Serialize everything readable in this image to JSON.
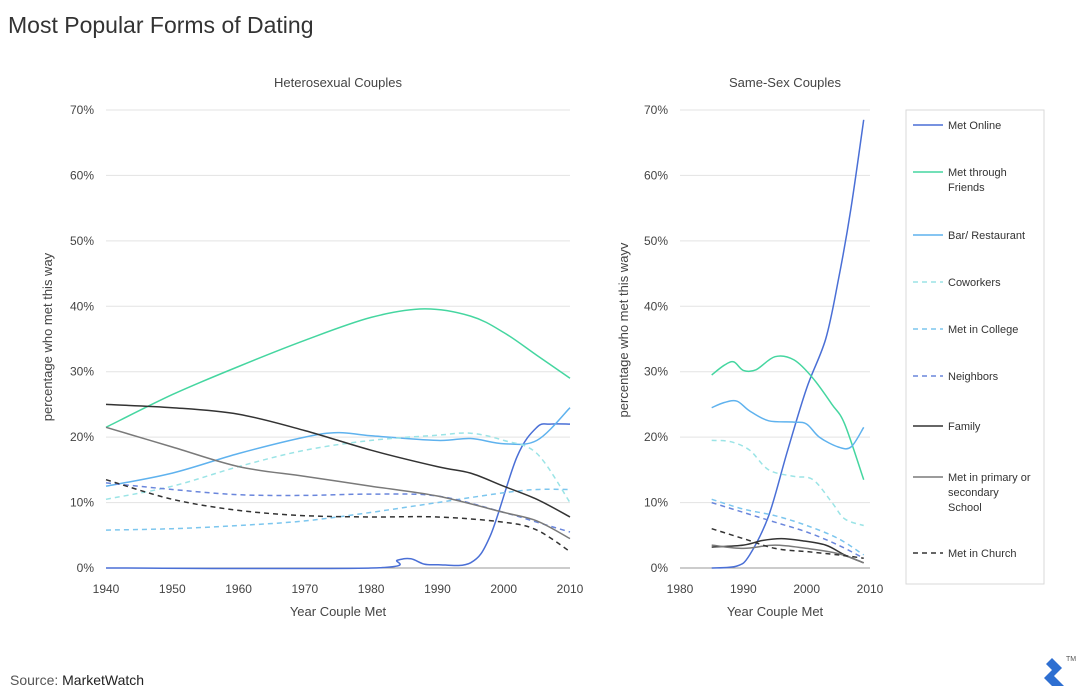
{
  "title": "Most Popular Forms of Dating",
  "source": {
    "prefix": "Source:",
    "name": "MarketWatch"
  },
  "colors": {
    "met_online": "#4a6fd6",
    "friends": "#45d6a0",
    "bar": "#5fb2ee",
    "coworkers": "#9be4e6",
    "college": "#7cc6ee",
    "neighbors": "#6a86dc",
    "family": "#333333",
    "school": "#7a7a7a",
    "church": "#333333",
    "logo": "#2e6fd1"
  },
  "legend": [
    {
      "key": "met_online",
      "label_lines": [
        "Met Online"
      ],
      "dash": "solid"
    },
    {
      "key": "friends",
      "label_lines": [
        "Met through",
        "Friends"
      ],
      "dash": "solid"
    },
    {
      "key": "bar",
      "label_lines": [
        "Bar/ Restaurant"
      ],
      "dash": "solid"
    },
    {
      "key": "coworkers",
      "label_lines": [
        "Coworkers"
      ],
      "dash": "dashed"
    },
    {
      "key": "college",
      "label_lines": [
        "Met in College"
      ],
      "dash": "dashed"
    },
    {
      "key": "neighbors",
      "label_lines": [
        "Neighbors"
      ],
      "dash": "dashed"
    },
    {
      "key": "family",
      "label_lines": [
        "Family"
      ],
      "dash": "solid"
    },
    {
      "key": "school",
      "label_lines": [
        "Met in primary or",
        "secondary",
        "School"
      ],
      "dash": "solid"
    },
    {
      "key": "church",
      "label_lines": [
        "Met in Church"
      ],
      "dash": "dashed"
    }
  ],
  "chart_data": [
    {
      "type": "line",
      "title": "Heterosexual Couples",
      "xlabel": "Year Couple Met",
      "ylabel": "percentage who met this way",
      "xlim": [
        1940,
        2010
      ],
      "ylim": [
        0,
        70
      ],
      "xticks": [
        1940,
        1950,
        1960,
        1970,
        1980,
        1990,
        2000,
        2010
      ],
      "xtick_labels": [
        "1940",
        "1950",
        "1960",
        "1970",
        "1980",
        "1990",
        "2000",
        "2010"
      ],
      "yticks": [
        0,
        10,
        20,
        30,
        40,
        50,
        60,
        70
      ],
      "ytick_labels": [
        "0%",
        "10%",
        "20%",
        "30%",
        "40%",
        "50%",
        "60%",
        "70%"
      ],
      "grid": "horizontal",
      "series": [
        {
          "key": "met_online",
          "name": "Met Online",
          "x": [
            1940,
            1980,
            1984,
            1986,
            1988,
            1990,
            1995,
            1998,
            2002,
            2005,
            2007,
            2010
          ],
          "y": [
            0,
            0,
            1.2,
            1.4,
            0.6,
            0.5,
            0.8,
            5,
            17,
            21.5,
            22,
            22
          ]
        },
        {
          "key": "friends",
          "name": "Met through Friends",
          "x": [
            1940,
            1950,
            1960,
            1970,
            1980,
            1988,
            1995,
            2000,
            2005,
            2010
          ],
          "y": [
            21.5,
            26.5,
            30.8,
            34.8,
            38.3,
            39.6,
            38.5,
            36,
            32.5,
            29
          ]
        },
        {
          "key": "bar",
          "name": "Bar/ Restaurant",
          "x": [
            1940,
            1950,
            1960,
            1970,
            1975,
            1980,
            1990,
            1995,
            2000,
            2005,
            2010
          ],
          "y": [
            12.5,
            14.5,
            17.5,
            20,
            20.7,
            20.2,
            19.5,
            19.8,
            19,
            19.5,
            24.5
          ]
        },
        {
          "key": "coworkers",
          "name": "Coworkers",
          "x": [
            1940,
            1950,
            1960,
            1970,
            1980,
            1990,
            1995,
            2000,
            2005,
            2010
          ],
          "y": [
            10.5,
            12.5,
            15.5,
            18,
            19.5,
            20.3,
            20.6,
            19.5,
            17.5,
            10
          ]
        },
        {
          "key": "college",
          "name": "Met in College",
          "x": [
            1940,
            1950,
            1960,
            1970,
            1980,
            1990,
            2000,
            2005,
            2010
          ],
          "y": [
            5.8,
            6,
            6.5,
            7.2,
            8.5,
            10,
            11.5,
            12,
            12
          ]
        },
        {
          "key": "neighbors",
          "name": "Neighbors",
          "x": [
            1940,
            1950,
            1960,
            1970,
            1980,
            1990,
            2000,
            2005,
            2010
          ],
          "y": [
            13,
            12,
            11.2,
            11.1,
            11.3,
            11,
            8.5,
            7,
            5.5
          ]
        },
        {
          "key": "family",
          "name": "Family",
          "x": [
            1940,
            1950,
            1960,
            1970,
            1980,
            1990,
            1995,
            2000,
            2005,
            2010
          ],
          "y": [
            25,
            24.5,
            23.5,
            21,
            18,
            15.5,
            14.5,
            12.5,
            10.5,
            7.8
          ]
        },
        {
          "key": "school",
          "name": "Met in primary or secondary School",
          "x": [
            1940,
            1950,
            1960,
            1970,
            1980,
            1990,
            2000,
            2005,
            2010
          ],
          "y": [
            21.5,
            18.5,
            15.5,
            14,
            12.5,
            11,
            8.5,
            7.2,
            4.5
          ]
        },
        {
          "key": "church",
          "name": "Met in Church",
          "x": [
            1940,
            1950,
            1960,
            1970,
            1980,
            1990,
            2000,
            2005,
            2010
          ],
          "y": [
            13.5,
            10.5,
            8.8,
            8,
            7.8,
            7.8,
            7,
            5.8,
            2.5
          ]
        }
      ]
    },
    {
      "type": "line",
      "title": "Same-Sex Couples",
      "xlabel": "Year Couple Met",
      "ylabel": "percentage who met this wayv",
      "xlim": [
        1980,
        2010
      ],
      "ylim": [
        0,
        70
      ],
      "xticks": [
        1980,
        1990,
        2000,
        2010
      ],
      "xtick_labels": [
        "1980",
        "1990",
        "2000",
        "2010"
      ],
      "yticks": [
        0,
        10,
        20,
        30,
        40,
        50,
        60,
        70
      ],
      "ytick_labels": [
        "0%",
        "10%",
        "20%",
        "30%",
        "40%",
        "50%",
        "60%",
        "70%"
      ],
      "grid": "horizontal",
      "series": [
        {
          "key": "met_online",
          "name": "Met Online",
          "x": [
            1985,
            1989,
            1991,
            1994,
            1997,
            2000,
            2003,
            2005,
            2007,
            2009
          ],
          "y": [
            0,
            0.3,
            2,
            8,
            18,
            27.5,
            35,
            44,
            55,
            68.5
          ]
        },
        {
          "key": "friends",
          "name": "Met through Friends",
          "x": [
            1985,
            1987,
            1988.5,
            1990,
            1992,
            1995,
            1998,
            2001,
            2004,
            2006,
            2009
          ],
          "y": [
            29.5,
            31,
            31.5,
            30.2,
            30.3,
            32.3,
            31.8,
            29,
            25,
            22,
            13.5
          ]
        },
        {
          "key": "bar",
          "name": "Bar/ Restaurant",
          "x": [
            1985,
            1987,
            1989,
            1991,
            1994,
            1998,
            2000,
            2002,
            2005,
            2007,
            2009
          ],
          "y": [
            24.5,
            25.3,
            25.5,
            24,
            22.5,
            22.3,
            22,
            20,
            18.5,
            18.5,
            21.5
          ]
        },
        {
          "key": "coworkers",
          "name": "Coworkers",
          "x": [
            1985,
            1988,
            1991,
            1994,
            1998,
            2001,
            2004,
            2006,
            2009
          ],
          "y": [
            19.5,
            19.3,
            18,
            15,
            14,
            13.5,
            10,
            7.5,
            6.5
          ]
        },
        {
          "key": "college",
          "name": "Met in College",
          "x": [
            1985,
            1990,
            1995,
            2000,
            2005,
            2009
          ],
          "y": [
            10.5,
            9,
            8,
            6.5,
            4.5,
            2
          ]
        },
        {
          "key": "neighbors",
          "name": "Neighbors",
          "x": [
            1985,
            1990,
            1995,
            2000,
            2005,
            2009
          ],
          "y": [
            10,
            8.5,
            7,
            5.5,
            3.5,
            1.5
          ]
        },
        {
          "key": "family",
          "name": "Family",
          "x": [
            1985,
            1990,
            1993,
            1996,
            1999,
            2003,
            2006,
            2009
          ],
          "y": [
            3.2,
            3.5,
            4.2,
            4.5,
            4.2,
            3.5,
            2,
            0.8
          ]
        },
        {
          "key": "school",
          "name": "Met in primary or secondary School",
          "x": [
            1985,
            1990,
            1995,
            2000,
            2005,
            2009
          ],
          "y": [
            3.5,
            3,
            3.5,
            3,
            2.2,
            0.8
          ]
        },
        {
          "key": "church",
          "name": "Met in Church",
          "x": [
            1985,
            1990,
            1995,
            2000,
            2005,
            2009
          ],
          "y": [
            6,
            4.5,
            3,
            2.5,
            2,
            1.5
          ]
        }
      ]
    }
  ]
}
